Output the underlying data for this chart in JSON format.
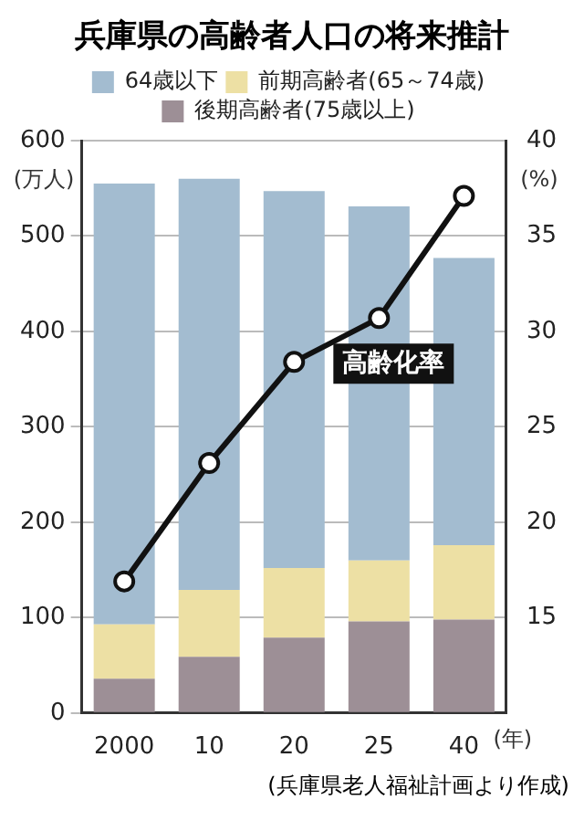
{
  "chart_data": {
    "type": "bar",
    "title": "兵庫県の高齢者人口の将来推計",
    "categories": [
      "2000",
      "10",
      "20",
      "25",
      "40"
    ],
    "stacked": true,
    "series": [
      {
        "name": "後期高齢者(75歳以上)",
        "color": "#9d8f96",
        "values": [
          36,
          59,
          79,
          96,
          98
        ]
      },
      {
        "name": "前期高齢者(65～74歳)",
        "color": "#ede0a4",
        "values": [
          57,
          70,
          73,
          64,
          78
        ]
      },
      {
        "name": "64歳以下",
        "color": "#a3bcd0",
        "values": [
          462,
          431,
          395,
          371,
          301
        ]
      },
      {
        "name": "高齢化率",
        "type": "line",
        "axis": "y2",
        "color": "#111111",
        "values": [
          16.9,
          23.1,
          28.4,
          30.7,
          37.1
        ]
      }
    ],
    "ylim": [
      0,
      600
    ],
    "yticks": [
      0,
      100,
      200,
      300,
      400,
      500,
      600
    ],
    "y2lim": [
      10,
      40
    ],
    "y2ticks": [
      15,
      20,
      25,
      30,
      35,
      40
    ],
    "ylabel": "(万人)",
    "y2label": "(%)",
    "xlabel": "(年)",
    "marker": "circle",
    "grid": "y",
    "legend": "top",
    "annotations": [
      "(兵庫県老人福祉計画より作成)"
    ]
  }
}
